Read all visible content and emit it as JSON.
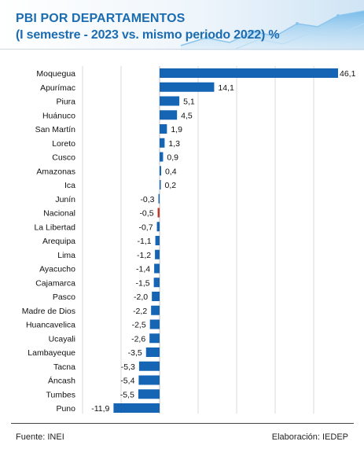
{
  "header": {
    "title": "PBI POR DEPARTAMENTOS",
    "subtitle": "(I semestre  - 2023 vs. mismo periodo 2022) %"
  },
  "footer": {
    "source": "Fuente: INEI",
    "credit": "Elaboración: IEDEP"
  },
  "colors": {
    "bar": "#1565b4",
    "highlight": "#c0392b",
    "grid": "#d9d9d9",
    "title": "#1b6cb0"
  },
  "chart_data": {
    "type": "bar",
    "orientation": "horizontal",
    "categories": [
      "Moquegua",
      "Apurímac",
      "Piura",
      "Huánuco",
      "San Martín",
      "Loreto",
      "Cusco",
      "Amazonas",
      "Ica",
      "Junín",
      "Nacional",
      "La Libertad",
      "Arequipa",
      "Lima",
      "Ayacucho",
      "Cajamarca",
      "Pasco",
      "Madre de Dios",
      "Huancavelica",
      "Ucayali",
      "Lambayeque",
      "Tacna",
      "Áncash",
      "Tumbes",
      "Puno"
    ],
    "values": [
      46.1,
      14.1,
      5.1,
      4.5,
      1.9,
      1.3,
      0.9,
      0.4,
      0.2,
      -0.3,
      -0.5,
      -0.7,
      -1.1,
      -1.2,
      -1.4,
      -1.5,
      -2.0,
      -2.2,
      -2.5,
      -2.6,
      -3.5,
      -5.3,
      -5.4,
      -5.5,
      -11.9
    ],
    "value_labels": [
      "46,1",
      "14,1",
      "5,1",
      "4,5",
      "1,9",
      "1,3",
      "0,9",
      "0,4",
      "0,2",
      "-0,3",
      "-0,5",
      "-0,7",
      "-1,1",
      "-1,2",
      "-1,4",
      "-1,5",
      "-2,0",
      "-2,2",
      "-2,5",
      "-2,6",
      "-3,5",
      "-5,3",
      "-5,4",
      "-5,5",
      "-11,9"
    ],
    "highlight_category": "Nacional",
    "xlim": [
      -12,
      46.1
    ],
    "grid": true,
    "legend": "none"
  }
}
